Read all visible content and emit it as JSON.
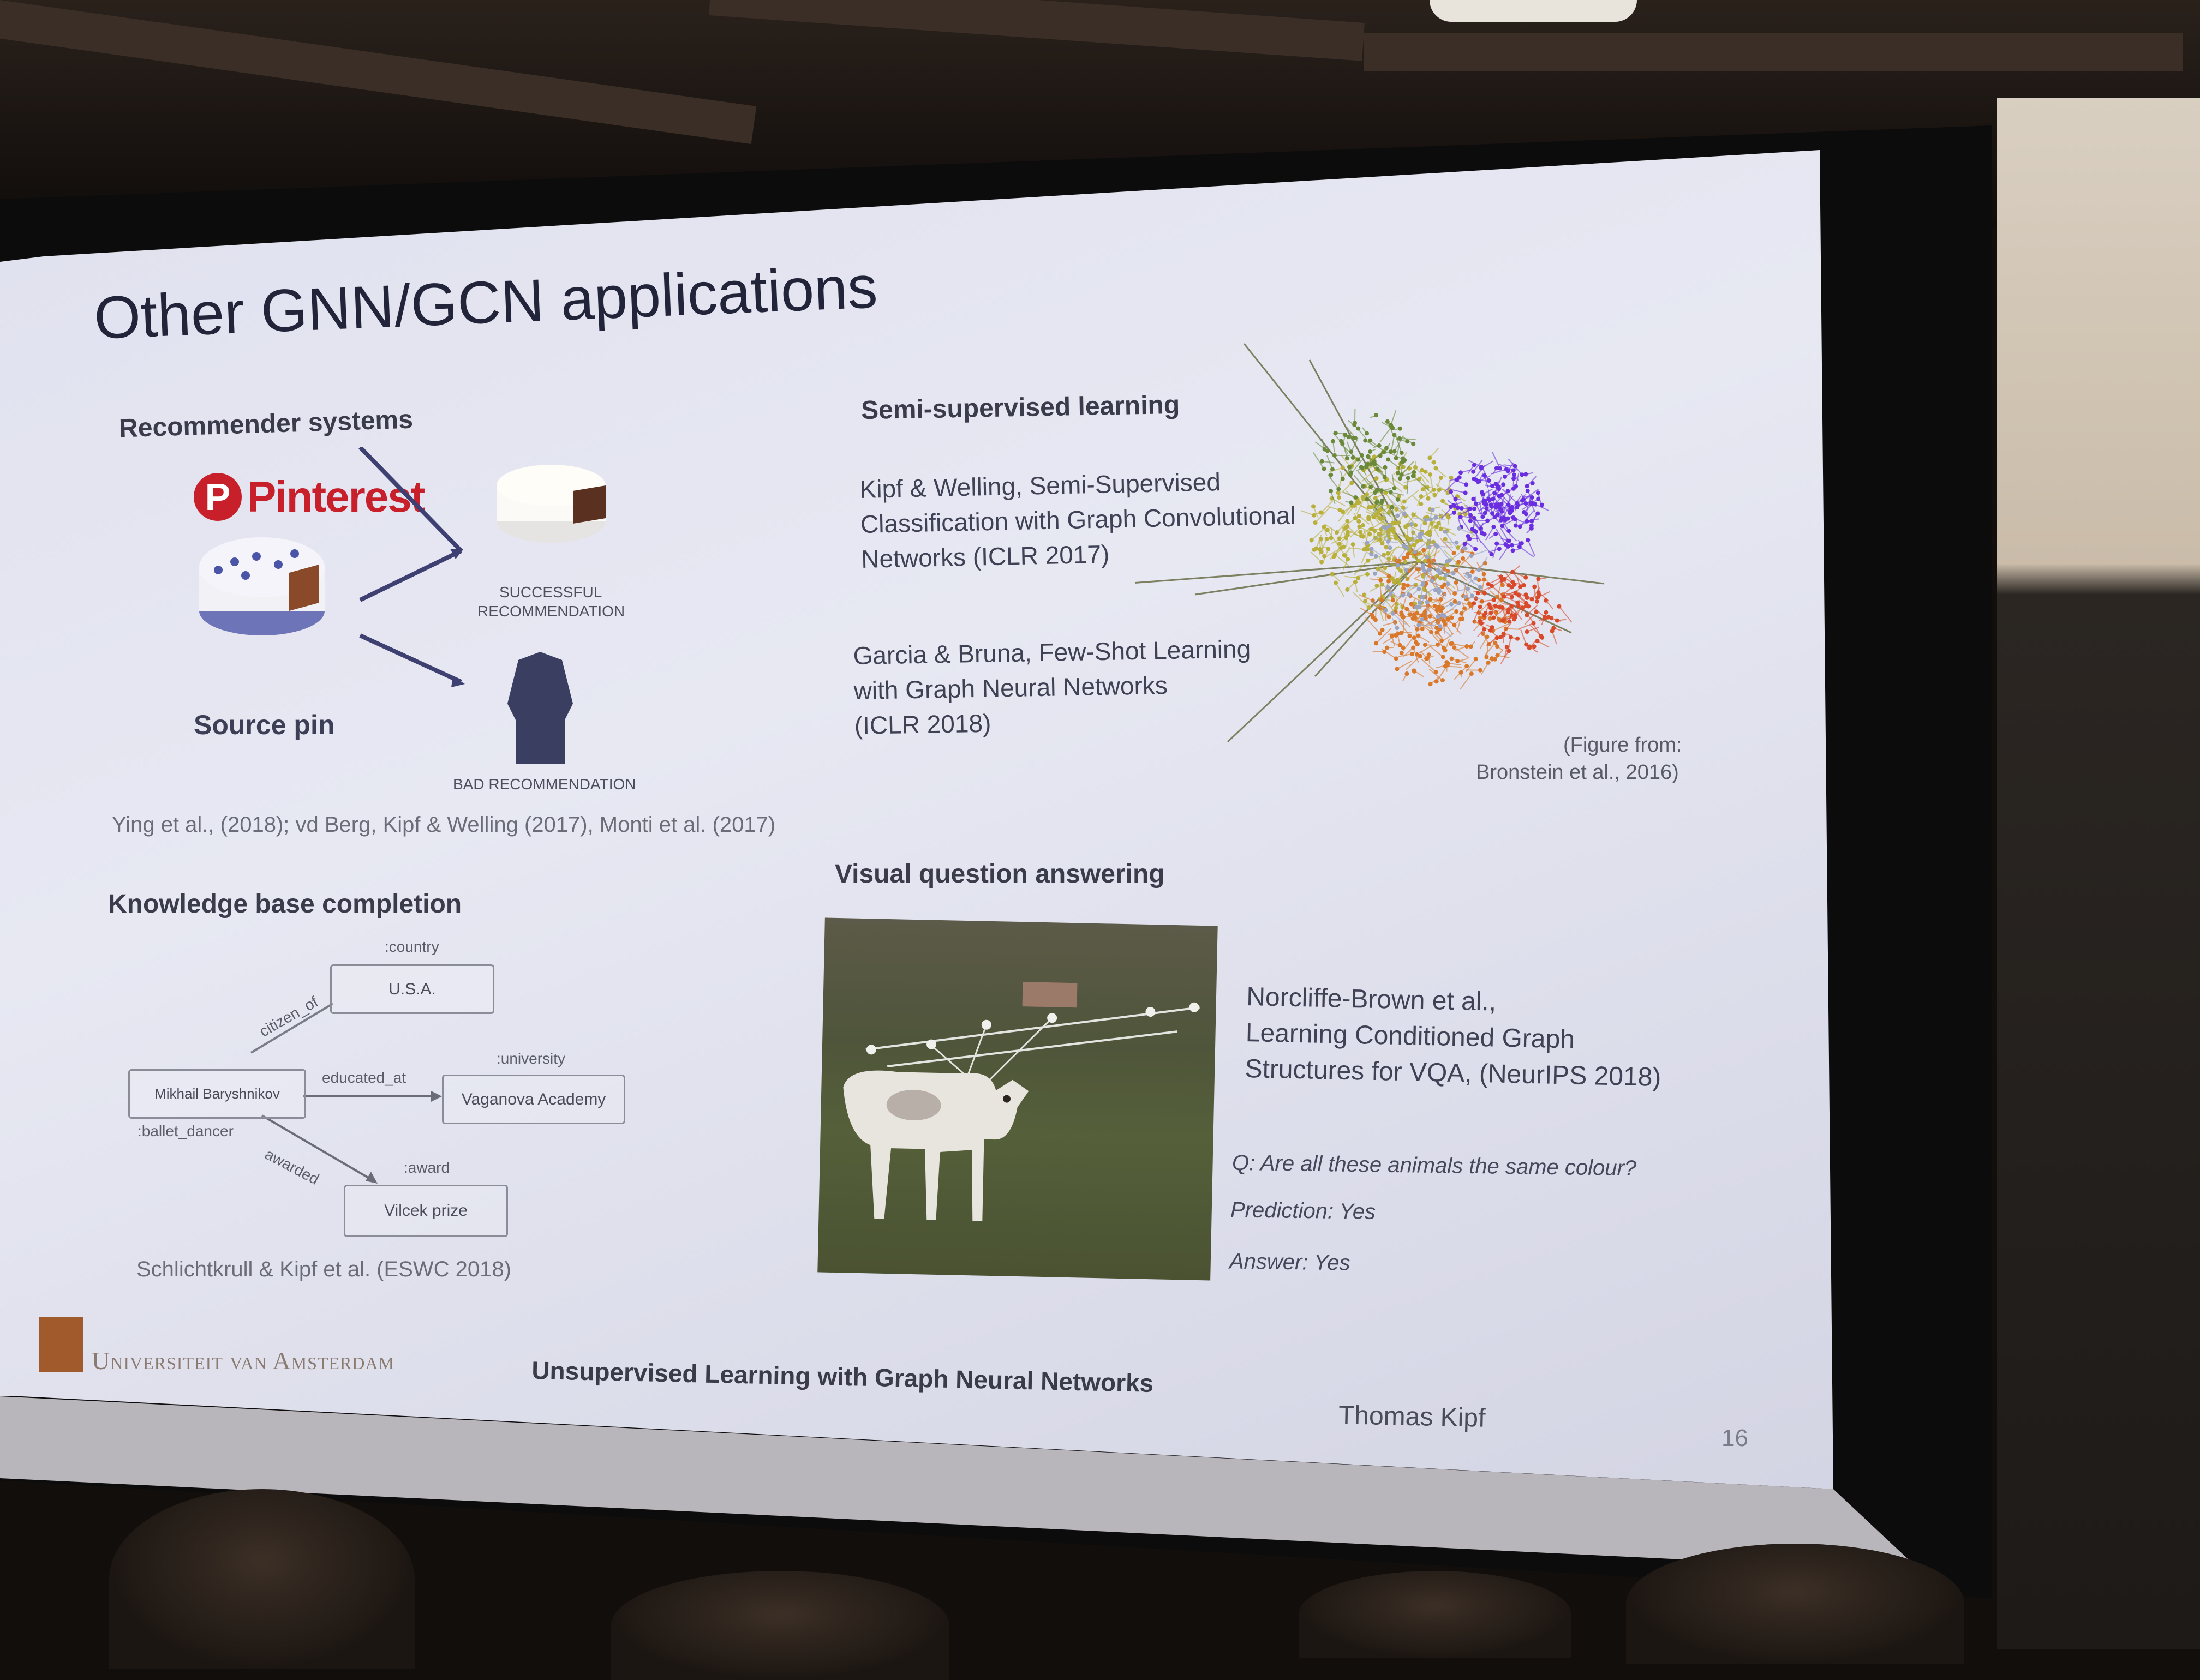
{
  "slide": {
    "title": "Other GNN/GCN applications",
    "recommender": {
      "heading": "Recommender systems",
      "brand": "Pinterest",
      "brand_letter": "P",
      "successful_line1": "SUCCESSFUL",
      "successful_line2": "RECOMMENDATION",
      "bad": "BAD RECOMMENDATION",
      "source_pin": "Source pin",
      "citation": "Ying et al., (2018); vd Berg, Kipf & Welling (2017), Monti et al. (2017)"
    },
    "semi_supervised": {
      "heading": "Semi-supervised learning",
      "ref1_line1": "Kipf & Welling, Semi-Supervised",
      "ref1_line2": "Classification with Graph Convolutional",
      "ref1_line3": "Networks (ICLR 2017)",
      "ref2_line1": "Garcia & Bruna, Few-Shot Learning",
      "ref2_line2": "with Graph Neural Networks",
      "ref2_line3": "(ICLR 2018)",
      "figure_line1": "(Figure from:",
      "figure_line2": "Bronstein et al., 2016)"
    },
    "knowledge_base": {
      "heading": "Knowledge base completion",
      "node_usa": "U.S.A.",
      "node_usa_type": ":country",
      "node_mikhail": "Mikhail Baryshnikov",
      "node_mikhail_type": ":ballet_dancer",
      "node_vaganova": "Vaganova Academy",
      "node_vaganova_type": ":university",
      "node_vilcek": "Vilcek prize",
      "node_vilcek_type": ":award",
      "edge_citizen": "citizen_of",
      "edge_educated": "educated_at",
      "edge_awarded": "awarded",
      "citation": "Schlichtkrull & Kipf et al. (ESWC 2018)"
    },
    "vqa": {
      "heading": "Visual question answering",
      "ref_line1": "Norcliffe-Brown et al.,",
      "ref_line2": "Learning Conditioned Graph",
      "ref_line3": "Structures for VQA, (NeurIPS 2018)",
      "question": "Q: Are all these animals the same colour?",
      "prediction": "Prediction: Yes",
      "answer": "Answer: Yes"
    },
    "footer": {
      "university": "Universiteit van Amsterdam",
      "talk_title": "Unsupervised Learning with Graph Neural Networks",
      "speaker": "Thomas Kipf",
      "page_number": "16"
    }
  }
}
